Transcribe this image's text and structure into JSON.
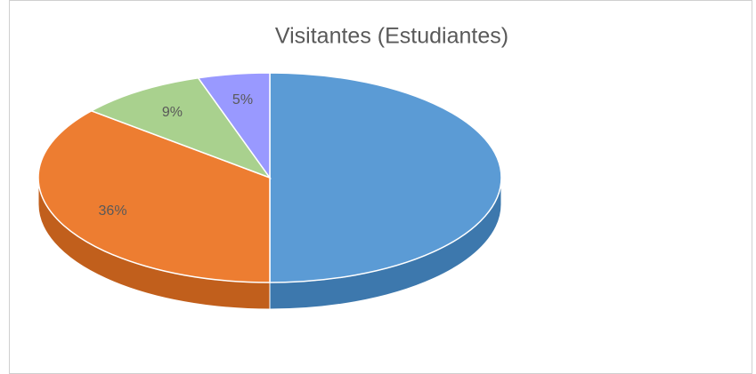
{
  "chart_data": {
    "type": "pie",
    "title": "Visitantes (Estudiantes)",
    "categories": [
      null,
      null,
      null,
      null
    ],
    "values": [
      50,
      36,
      9,
      5
    ],
    "value_labels": [
      null,
      "36%",
      "9%",
      "5%"
    ],
    "colors": [
      "#5b9bd5",
      "#ed7d31",
      "#a9d18e",
      "#9999ff"
    ],
    "side_colors": [
      "#3d78ad",
      "#c15f1c",
      "#7fa866",
      "#7070cc"
    ]
  }
}
